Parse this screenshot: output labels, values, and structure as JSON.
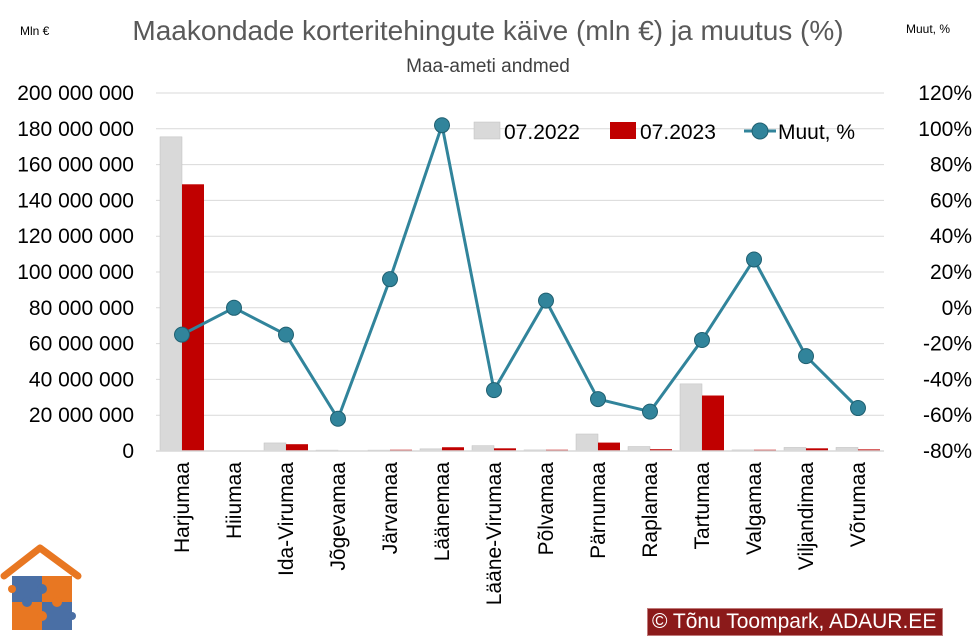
{
  "title": "Maakondade korteritehingute käive (mln €) ja muutus (%)",
  "subtitle": "Maa-ameti andmed",
  "left_unit": "Mln €",
  "right_unit": "Muut, %",
  "credit": "© Tõnu Toompark, ADAUR.EE",
  "colors": {
    "series_2022": "#d9d9d9",
    "series_2023": "#c00000",
    "change_line": "#31849b",
    "grid": "#d9d9d9"
  },
  "chart_data": {
    "type": "bar",
    "categories": [
      "Harjumaa",
      "Hiiumaa",
      "Ida-Virumaa",
      "Jõgevamaa",
      "Järvamaa",
      "Läänemaa",
      "Lääne-Virumaa",
      "Põlvamaa",
      "Pärnumaa",
      "Raplamaa",
      "Tartumaa",
      "Valgamaa",
      "Viljandimaa",
      "Võrumaa"
    ],
    "series": [
      {
        "name": "07.2022",
        "type": "bar",
        "axis": "left",
        "values": [
          175500000,
          100000,
          4500000,
          500000,
          500000,
          1200000,
          3000000,
          600000,
          9500000,
          2500000,
          37500000,
          600000,
          2000000,
          2000000
        ]
      },
      {
        "name": "07.2023",
        "type": "bar",
        "axis": "left",
        "values": [
          149000000,
          100000,
          3800000,
          200000,
          700000,
          2100000,
          1500000,
          700000,
          4700000,
          1000000,
          31000000,
          700000,
          1500000,
          900000
        ]
      },
      {
        "name": "Muut, %",
        "type": "line",
        "axis": "right",
        "values": [
          -15,
          0,
          -15,
          -62,
          16,
          102,
          -46,
          4,
          -51,
          -58,
          -18,
          27,
          -27,
          -56
        ]
      }
    ],
    "left_axis": {
      "min": 0,
      "max": 200000000,
      "step": 20000000,
      "tick_labels": [
        "0",
        "20 000 000",
        "40 000 000",
        "60 000 000",
        "80 000 000",
        "100 000 000",
        "120 000 000",
        "140 000 000",
        "160 000 000",
        "180 000 000",
        "200 000 000"
      ]
    },
    "right_axis": {
      "min": -80,
      "max": 120,
      "step": 20,
      "tick_labels": [
        "-80%",
        "-60%",
        "-40%",
        "-20%",
        "0%",
        "20%",
        "40%",
        "60%",
        "80%",
        "100%",
        "120%"
      ]
    },
    "grid": true,
    "legend_position": "top-right"
  }
}
